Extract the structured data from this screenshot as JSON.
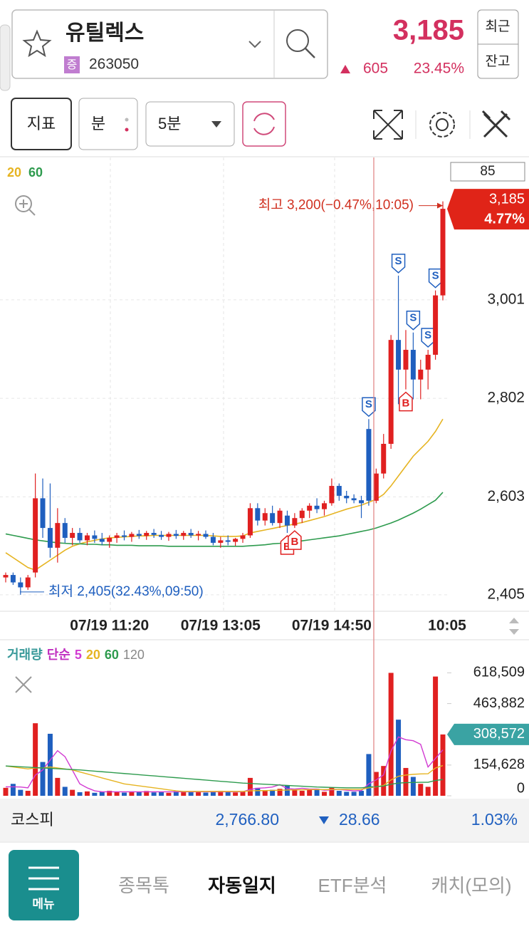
{
  "header": {
    "title": "유틸렉스",
    "badge": "증",
    "code": "263050",
    "price": "3,185",
    "change": "605",
    "change_pct": "23.45%",
    "buttons": [
      "최근",
      "잔고"
    ]
  },
  "toolbar": {
    "indicator": "지표",
    "period_type": "분",
    "period": "5분"
  },
  "chart_data": [
    {
      "type": "candlestick",
      "up_color": "#e02020",
      "down_color": "#1f5fbf",
      "grid": true,
      "ylim": [
        2376,
        3283
      ],
      "yticks": [
        {
          "value": 2405,
          "label": "2,405"
        },
        {
          "value": 2603,
          "label": "2,603"
        },
        {
          "value": 2802,
          "label": "2,802"
        },
        {
          "value": 3001,
          "label": "3,001"
        }
      ],
      "x_labels": [
        "07/19 11:20",
        "07/19 13:05",
        "07/19 14:50",
        "10:05"
      ],
      "scale_box": "85",
      "current_price": {
        "value": 3185,
        "label": "3,185"
      },
      "current_change": "4.77%",
      "high": {
        "value": 3200,
        "label": "최고 3,200(−0.47%,10:05)"
      },
      "low": {
        "value": 2405,
        "label": "최저 2,405(32.43%,09:50)"
      },
      "candles": [
        [
          2440,
          2450,
          2430,
          2445
        ],
        [
          2445,
          2450,
          2425,
          2430
        ],
        [
          2430,
          2440,
          2405,
          2420
        ],
        [
          2420,
          2445,
          2415,
          2440
        ],
        [
          2450,
          2650,
          2440,
          2600
        ],
        [
          2600,
          2640,
          2520,
          2540
        ],
        [
          2540,
          2630,
          2480,
          2500
        ],
        [
          2500,
          2580,
          2470,
          2550
        ],
        [
          2550,
          2560,
          2510,
          2520
        ],
        [
          2520,
          2540,
          2505,
          2530
        ],
        [
          2530,
          2540,
          2510,
          2515
        ],
        [
          2515,
          2530,
          2505,
          2525
        ],
        [
          2525,
          2535,
          2510,
          2518
        ],
        [
          2518,
          2530,
          2505,
          2512
        ],
        [
          2512,
          2525,
          2500,
          2520
        ],
        [
          2520,
          2530,
          2510,
          2525
        ],
        [
          2525,
          2535,
          2515,
          2522
        ],
        [
          2522,
          2532,
          2512,
          2528
        ],
        [
          2528,
          2536,
          2518,
          2524
        ],
        [
          2524,
          2534,
          2516,
          2530
        ],
        [
          2530,
          2538,
          2520,
          2526
        ],
        [
          2526,
          2534,
          2516,
          2522
        ],
        [
          2522,
          2532,
          2514,
          2528
        ],
        [
          2528,
          2536,
          2518,
          2524
        ],
        [
          2524,
          2534,
          2516,
          2530
        ],
        [
          2530,
          2538,
          2520,
          2525
        ],
        [
          2525,
          2534,
          2515,
          2528
        ],
        [
          2528,
          2535,
          2518,
          2522
        ],
        [
          2522,
          2530,
          2505,
          2510
        ],
        [
          2510,
          2522,
          2500,
          2515
        ],
        [
          2515,
          2525,
          2505,
          2512
        ],
        [
          2512,
          2520,
          2504,
          2518
        ],
        [
          2518,
          2530,
          2510,
          2525
        ],
        [
          2525,
          2590,
          2520,
          2580
        ],
        [
          2580,
          2590,
          2545,
          2555
        ],
        [
          2555,
          2580,
          2545,
          2570
        ],
        [
          2570,
          2585,
          2545,
          2550
        ],
        [
          2550,
          2580,
          2540,
          2575
        ],
        [
          2565,
          2575,
          2530,
          2545
        ],
        [
          2545,
          2570,
          2540,
          2560
        ],
        [
          2560,
          2580,
          2550,
          2575
        ],
        [
          2575,
          2590,
          2560,
          2585
        ],
        [
          2585,
          2600,
          2570,
          2578
        ],
        [
          2578,
          2595,
          2565,
          2590
        ],
        [
          2590,
          2640,
          2585,
          2625
        ],
        [
          2625,
          2630,
          2595,
          2605
        ],
        [
          2605,
          2615,
          2590,
          2600
        ],
        [
          2600,
          2608,
          2590,
          2596
        ],
        [
          2596,
          2605,
          2560,
          2590
        ],
        [
          2740,
          2760,
          2585,
          2595
        ],
        [
          2595,
          2660,
          2590,
          2650
        ],
        [
          2650,
          2730,
          2640,
          2710
        ],
        [
          2710,
          2930,
          2700,
          2920
        ],
        [
          2920,
          3050,
          2790,
          2860
        ],
        [
          2860,
          2940,
          2820,
          2900
        ],
        [
          2900,
          2935,
          2800,
          2840
        ],
        [
          2840,
          2880,
          2800,
          2860
        ],
        [
          2860,
          2900,
          2820,
          2890
        ],
        [
          2890,
          3020,
          2880,
          3010
        ],
        [
          3010,
          3200,
          3000,
          3185
        ]
      ],
      "signals": [
        null,
        null,
        null,
        null,
        null,
        null,
        null,
        null,
        null,
        null,
        null,
        null,
        null,
        null,
        null,
        null,
        null,
        null,
        null,
        null,
        null,
        null,
        null,
        null,
        null,
        null,
        null,
        null,
        null,
        null,
        null,
        null,
        null,
        null,
        null,
        null,
        null,
        null,
        "B",
        "B",
        null,
        null,
        null,
        null,
        null,
        null,
        null,
        null,
        null,
        "S",
        null,
        null,
        null,
        "S",
        "B",
        "S",
        null,
        "S",
        "S",
        null
      ],
      "series": [
        {
          "name": "20",
          "color": "#e6b422",
          "values": [
            2490,
            2480,
            2470,
            2460,
            2455,
            2465,
            2475,
            2485,
            2495,
            2503,
            2508,
            2512,
            2515,
            2518,
            2520,
            2521,
            2522,
            2523,
            2524,
            2524,
            2525,
            2525,
            2525,
            2525,
            2525,
            2525,
            2525,
            2525,
            2524,
            2523,
            2523,
            2523,
            2524,
            2530,
            2533,
            2536,
            2539,
            2542,
            2545,
            2548,
            2551,
            2555,
            2559,
            2563,
            2568,
            2573,
            2578,
            2582,
            2586,
            2592,
            2598,
            2608,
            2625,
            2645,
            2665,
            2685,
            2700,
            2715,
            2735,
            2760
          ]
        },
        {
          "name": "60",
          "color": "#2e9b4e",
          "values": [
            2528,
            2525,
            2522,
            2519,
            2516,
            2514,
            2512,
            2510,
            2509,
            2508,
            2508,
            2507,
            2507,
            2506,
            2506,
            2505,
            2505,
            2505,
            2504,
            2504,
            2504,
            2504,
            2503,
            2503,
            2503,
            2503,
            2503,
            2503,
            2503,
            2503,
            2503,
            2503,
            2503,
            2504,
            2505,
            2506,
            2508,
            2509,
            2511,
            2512,
            2514,
            2516,
            2518,
            2520,
            2522,
            2524,
            2527,
            2530,
            2533,
            2536,
            2540,
            2545,
            2550,
            2556,
            2563,
            2570,
            2578,
            2587,
            2596,
            2612
          ]
        }
      ]
    },
    {
      "type": "bar",
      "title": "거래량",
      "kind": "단순",
      "extra_legend": "120",
      "extra_color": "#888888",
      "ylim": [
        0,
        760000
      ],
      "yticks": [
        0,
        {
          "value": 154628,
          "label": "154,628"
        },
        {
          "value": 463882,
          "label": "463,882"
        },
        {
          "value": 618509,
          "label": "618,509"
        }
      ],
      "current": {
        "value": 308572,
        "label": "308,572"
      },
      "values": [
        40000,
        60000,
        30000,
        25000,
        365000,
        170000,
        312000,
        90000,
        45000,
        30000,
        18000,
        22000,
        15000,
        20000,
        25000,
        18000,
        16000,
        22000,
        19000,
        24000,
        17000,
        21000,
        15000,
        23000,
        20000,
        18000,
        22000,
        16000,
        19000,
        25000,
        21000,
        17000,
        20000,
        90000,
        40000,
        25000,
        30000,
        35000,
        50000,
        30000,
        25000,
        30000,
        35000,
        20000,
        40000,
        25000,
        20000,
        20000,
        25000,
        210000,
        120000,
        150000,
        618509,
        383000,
        140000,
        95000,
        60000,
        45000,
        600000,
        308572
      ],
      "series": [
        {
          "name": "5",
          "color": "#d23bd2",
          "values": [
            45000,
            45000,
            44000,
            40000,
            104000,
            130000,
            180000,
            227000,
            197000,
            129000,
            60000,
            40000,
            25000,
            20000,
            20000,
            20000,
            20000,
            20000,
            20000,
            20000,
            20000,
            20000,
            20000,
            20000,
            20000,
            20000,
            20000,
            20000,
            20000,
            20000,
            20000,
            20000,
            20000,
            32000,
            38000,
            40000,
            44000,
            56000,
            36000,
            34000,
            38000,
            34000,
            34000,
            28000,
            30000,
            32000,
            28000,
            25000,
            26000,
            60000,
            80000,
            105000,
            225000,
            296000,
            282000,
            277000,
            259000,
            145000,
            188000,
            231000
          ]
        },
        {
          "name": "20",
          "color": "#e6b422",
          "values": [
            150000,
            145000,
            140000,
            135000,
            140000,
            140000,
            145000,
            140000,
            135000,
            130000,
            120000,
            110000,
            100000,
            90000,
            80000,
            70000,
            60000,
            55000,
            50000,
            45000,
            40000,
            35000,
            30000,
            25000,
            22000,
            22000,
            22000,
            22000,
            22000,
            22000,
            22000,
            22000,
            22000,
            25000,
            26000,
            26000,
            27000,
            28000,
            29000,
            30000,
            30000,
            31000,
            31000,
            31000,
            32000,
            32000,
            32000,
            32000,
            32000,
            40000,
            45000,
            52000,
            80000,
            98000,
            104000,
            108000,
            110000,
            111000,
            140000,
            152000
          ]
        },
        {
          "name": "60",
          "color": "#2e9b4e",
          "values": [
            150000,
            148000,
            146000,
            144000,
            142000,
            140000,
            138000,
            136000,
            134000,
            132000,
            130000,
            127000,
            124000,
            121000,
            118000,
            115000,
            112000,
            109000,
            106000,
            103000,
            100000,
            97000,
            94000,
            91000,
            88000,
            85000,
            82000,
            79000,
            76000,
            73000,
            70000,
            67000,
            64000,
            62000,
            60000,
            58000,
            56000,
            54000,
            52000,
            50000,
            48000,
            46000,
            44000,
            43000,
            42000,
            41000,
            40000,
            40000,
            40000,
            44000,
            46000,
            49000,
            58000,
            64000,
            66000,
            67000,
            68000,
            68000,
            77000,
            82000
          ]
        }
      ]
    }
  ],
  "index_bar": {
    "name": "코스피",
    "value": "2,766.80",
    "change": "28.66",
    "change_pct": "1.03%"
  },
  "nav": {
    "menu": "메뉴",
    "tabs": [
      "종목톡",
      "자동일지",
      "ETF분석",
      "캐치(모의)"
    ]
  }
}
